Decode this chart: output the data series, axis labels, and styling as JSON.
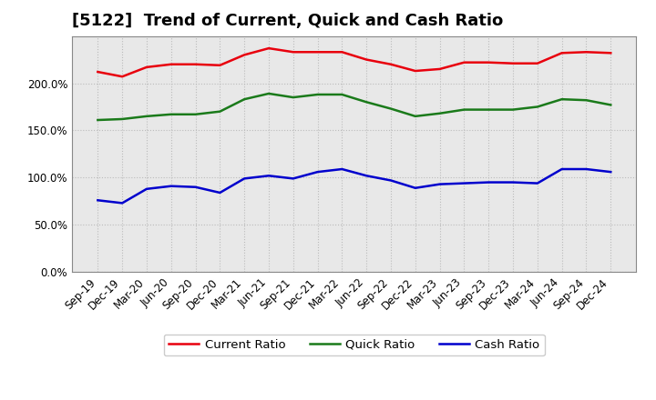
{
  "title": "[5122]  Trend of Current, Quick and Cash Ratio",
  "labels": [
    "Sep-19",
    "Dec-19",
    "Mar-20",
    "Jun-20",
    "Sep-20",
    "Dec-20",
    "Mar-21",
    "Jun-21",
    "Sep-21",
    "Dec-21",
    "Mar-22",
    "Jun-22",
    "Sep-22",
    "Dec-22",
    "Mar-23",
    "Jun-23",
    "Sep-23",
    "Dec-23",
    "Mar-24",
    "Jun-24",
    "Sep-24",
    "Dec-24"
  ],
  "current_ratio": [
    212,
    207,
    217,
    220,
    220,
    219,
    230,
    237,
    233,
    233,
    233,
    225,
    220,
    213,
    215,
    222,
    222,
    221,
    221,
    232,
    233,
    232
  ],
  "quick_ratio": [
    161,
    162,
    165,
    167,
    167,
    170,
    183,
    189,
    185,
    188,
    188,
    180,
    173,
    165,
    168,
    172,
    172,
    172,
    175,
    183,
    182,
    177
  ],
  "cash_ratio": [
    76,
    73,
    88,
    91,
    90,
    84,
    99,
    102,
    99,
    106,
    109,
    102,
    97,
    89,
    93,
    94,
    95,
    95,
    94,
    109,
    109,
    106
  ],
  "current_color": "#e8000d",
  "quick_color": "#1a7a1a",
  "cash_color": "#0000cd",
  "bg_color": "#ffffff",
  "plot_bg_color": "#e8e8e8",
  "ylim": [
    0,
    250
  ],
  "yticks": [
    0,
    50,
    100,
    150,
    200
  ],
  "ytick_labels": [
    "0.0%",
    "50.0%",
    "100.0%",
    "150.0%",
    "200.0%"
  ],
  "grid_color": "#bbbbbb",
  "legend_labels": [
    "Current Ratio",
    "Quick Ratio",
    "Cash Ratio"
  ],
  "title_fontsize": 13,
  "axis_fontsize": 8.5,
  "legend_fontsize": 9.5,
  "line_width": 1.8
}
